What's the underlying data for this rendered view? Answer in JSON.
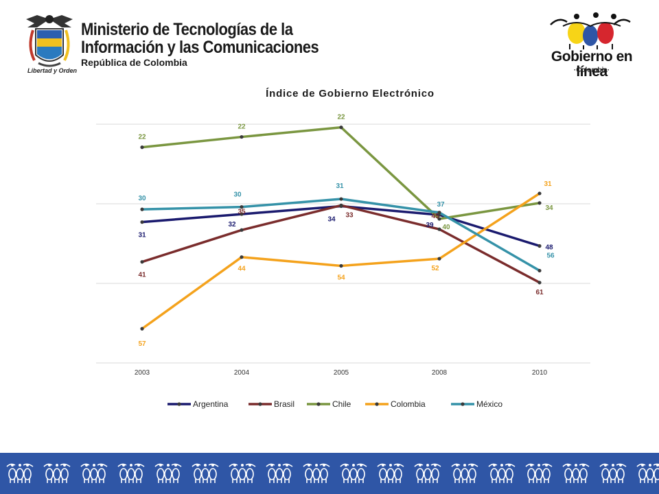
{
  "header": {
    "ministry_line1": "Ministerio de Tecnologías de la",
    "ministry_line2": "Información y las Comunicaciones",
    "ministry_line3": "República de Colombia",
    "coat_motto": "Libertad y Orden",
    "program_name": "Gobierno en línea",
    "program_country": "·Colombia·"
  },
  "icons": {
    "coat_of_arms": "colombia-coat-of-arms-icon",
    "program_logo": "three-figures-logo-icon",
    "footer_pattern": "people-figures-pattern-icon"
  },
  "chart_data": {
    "type": "line",
    "title": "Índice de Gobierno Electrónico",
    "categories": [
      "2003",
      "2004",
      "2005",
      "2008",
      "2010"
    ],
    "ylim": [
      0.4,
      0.7
    ],
    "yticks": [
      "0,4",
      "0,5",
      "0,6",
      "0,7"
    ],
    "grid": true,
    "legend_position": "bottom",
    "series": [
      {
        "name": "Argentina",
        "color": "#1a1a6e",
        "values": [
          0.577,
          0.587,
          0.597,
          0.586,
          0.547
        ],
        "labels": [
          "31",
          "32",
          "34",
          "39",
          "48"
        ]
      },
      {
        "name": "Brasil",
        "color": "#7a2c2c",
        "values": [
          0.527,
          0.567,
          0.598,
          0.568,
          0.501
        ],
        "labels": [
          "41",
          "35",
          "33",
          "45",
          "61"
        ]
      },
      {
        "name": "Chile",
        "color": "#7a9640",
        "values": [
          0.671,
          0.684,
          0.696,
          0.581,
          0.601
        ],
        "labels": [
          "22",
          "22",
          "22",
          "40",
          "34"
        ]
      },
      {
        "name": "Colombia",
        "color": "#f4a21c",
        "values": [
          0.443,
          0.533,
          0.522,
          0.531,
          0.613
        ],
        "labels": [
          "57",
          "44",
          "54",
          "52",
          "31"
        ]
      },
      {
        "name": "México",
        "color": "#3592a8",
        "values": [
          0.593,
          0.596,
          0.606,
          0.589,
          0.516
        ],
        "labels": [
          "30",
          "30",
          "31",
          "37",
          "56"
        ]
      }
    ]
  }
}
